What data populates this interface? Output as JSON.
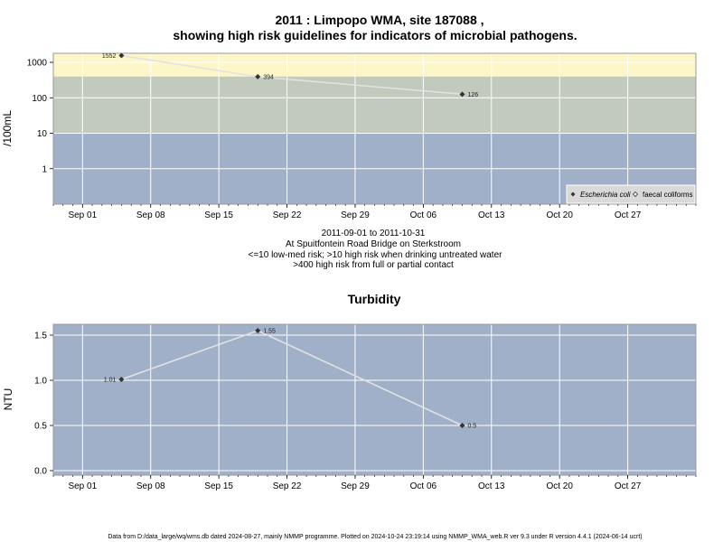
{
  "page": {
    "title_line1": "2011 : Limpopo WMA, site 187088 ,",
    "title_line2": "showing high risk guidelines for indicators of microbial pathogens.",
    "footer": "Data from D:/data_large/wq/wms.db dated 2024-08-27, mainly NMMP programme. Plotted on 2024-10-24 23:19:14 using NMMP_WMA_web.R ver 9.3 under R version 4.4.1 (2024-06-14 ucrt)"
  },
  "colors": {
    "low_band": "#a0b0c8",
    "mid_band": "#c2cabd",
    "high_band": "#fdf6c8",
    "line": "#e2e2e2",
    "grid": "#ffffff",
    "point": "#333333",
    "legend_bg": "#d9d9d9"
  },
  "chart_data": [
    {
      "type": "scatter",
      "log_y": true,
      "title": "",
      "ylabel": "/100mL",
      "ylim": [
        0.1,
        1800
      ],
      "y_ticks": [
        1,
        10,
        100,
        1000
      ],
      "y_tick_labels": [
        "1",
        "10",
        "100",
        "1000"
      ],
      "x_tick_labels": [
        "Sep 01",
        "Sep 08",
        "Sep 15",
        "Sep 22",
        "Sep 29",
        "Oct 06",
        "Oct 13",
        "Oct 20",
        "Oct 27"
      ],
      "x_tick_dates": [
        "2011-09-01",
        "2011-09-08",
        "2011-09-15",
        "2011-09-22",
        "2011-09-29",
        "2011-10-06",
        "2011-10-13",
        "2011-10-20",
        "2011-10-27"
      ],
      "xlim": [
        "2011-08-29",
        "2011-11-03"
      ],
      "bands": [
        {
          "from": 0.1,
          "to": 10,
          "color": "#a0b0c8"
        },
        {
          "from": 10,
          "to": 400,
          "color": "#c2cabd"
        },
        {
          "from": 400,
          "to": 1800,
          "color": "#fdf6c8"
        }
      ],
      "series": [
        {
          "name": "Escherichia coli",
          "marker": "filled-diamond",
          "x": [
            "2011-09-05",
            "2011-09-19",
            "2011-10-10"
          ],
          "y": [
            1552,
            394,
            126
          ],
          "labels": [
            "1552",
            "394",
            "126"
          ]
        },
        {
          "name": "faecal coliforms",
          "marker": "open-diamond",
          "x": [],
          "y": []
        }
      ],
      "legend_position": "bottom-right",
      "caption": [
        "2011-09-01 to 2011-10-31",
        "At Spuitfontein Road Bridge on Sterkstroom",
        "<=10 low-med risk; >10 high risk when drinking untreated water",
        ">400 high risk from full or partial contact"
      ]
    },
    {
      "type": "scatter",
      "log_y": false,
      "title": "Turbidity",
      "ylabel": "NTU",
      "ylim": [
        -0.05,
        1.62
      ],
      "y_ticks": [
        0,
        0.5,
        1,
        1.5
      ],
      "y_tick_labels": [
        "0.0",
        "0.5",
        "1.0",
        "1.5"
      ],
      "x_tick_labels": [
        "Sep 01",
        "Sep 08",
        "Sep 15",
        "Sep 22",
        "Sep 29",
        "Oct 06",
        "Oct 13",
        "Oct 20",
        "Oct 27"
      ],
      "x_tick_dates": [
        "2011-09-01",
        "2011-09-08",
        "2011-09-15",
        "2011-09-22",
        "2011-09-29",
        "2011-10-06",
        "2011-10-13",
        "2011-10-20",
        "2011-10-27"
      ],
      "xlim": [
        "2011-08-29",
        "2011-11-03"
      ],
      "series": [
        {
          "name": "",
          "marker": "filled-diamond",
          "x": [
            "2011-09-05",
            "2011-09-19",
            "2011-10-10"
          ],
          "y": [
            1.01,
            1.55,
            0.5
          ],
          "labels": [
            "1.01",
            "1.55",
            "0.5"
          ]
        }
      ]
    }
  ]
}
